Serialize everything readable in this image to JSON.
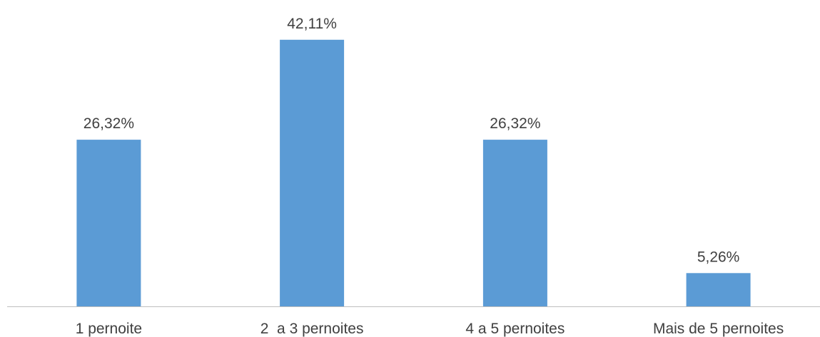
{
  "chart_data": {
    "type": "bar",
    "title": "",
    "xlabel": "",
    "ylabel": "",
    "categories": [
      "1 pernoite",
      "2  a 3 pernoites",
      "4 a 5 pernoites",
      "Mais de 5 pernoites"
    ],
    "values": [
      26.32,
      42.11,
      26.32,
      5.26
    ],
    "value_labels": [
      "26,32%",
      "42,11%",
      "26,32%",
      "5,26%"
    ],
    "ylim": [
      0,
      45
    ],
    "grid": false,
    "legend": "none",
    "bar_color": "#5b9bd5",
    "axis_color": "#bfbfbf",
    "text_color": "#404040"
  }
}
